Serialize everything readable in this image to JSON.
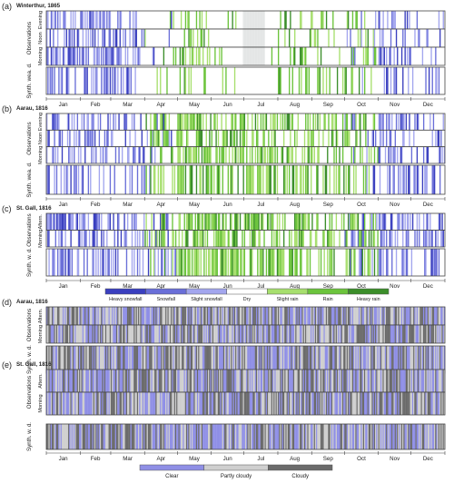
{
  "chart_data": {
    "type": "heatmap",
    "months": [
      "Jan",
      "Feb",
      "Mar",
      "Apr",
      "May",
      "Jun",
      "Jul",
      "Aug",
      "Sep",
      "Oct",
      "Nov",
      "Dec"
    ],
    "panels": [
      {
        "letter": "(a)",
        "title": "Winterthur, 1865",
        "scheme": "precip",
        "obs_label": "Observations",
        "syn_label": "Synth. wea. d.",
        "obs_rows": [
          "Evening",
          "Noon",
          "Morning"
        ],
        "seed": 11,
        "wet_by_month": [
          0.45,
          0.6,
          0.35,
          0.12,
          0.42,
          0.08,
          0.05,
          0.3,
          0.2,
          0.32,
          0.3,
          0.15
        ],
        "missing_days": [
          180,
          200
        ]
      },
      {
        "letter": "(b)",
        "title": "Aarau, 1816",
        "scheme": "precip",
        "obs_label": "Observations",
        "syn_label": "Synth. wea. d.",
        "obs_rows": [
          "Evening",
          "Noon",
          "Morning"
        ],
        "seed": 23,
        "wet_by_month": [
          0.4,
          0.35,
          0.3,
          0.45,
          0.55,
          0.5,
          0.55,
          0.45,
          0.35,
          0.4,
          0.4,
          0.3
        ]
      },
      {
        "letter": "(c)",
        "title": "St. Gall, 1816",
        "scheme": "precip",
        "obs_label": "Observations",
        "syn_label": "Synth. w. d.",
        "obs_rows": [
          "Aftern.",
          "Morning"
        ],
        "seed": 37,
        "wet_by_month": [
          0.5,
          0.45,
          0.4,
          0.5,
          0.6,
          0.6,
          0.65,
          0.55,
          0.45,
          0.5,
          0.45,
          0.4
        ]
      },
      {
        "letter": "(d)",
        "title": "Aarau, 1816",
        "scheme": "cloud",
        "obs_label": "Observations",
        "syn_label": "Synth. w. d.",
        "obs_rows": [
          "Aftern.",
          "Morning"
        ],
        "seed": 51
      },
      {
        "letter": "(e)",
        "title": "St. Gall, 1816",
        "scheme": "cloud",
        "obs_label": "Observations",
        "syn_label": "Synth. w. d.",
        "obs_rows": [
          "Aftern.",
          "Morning"
        ],
        "seed": 67
      }
    ],
    "legend_precip": [
      {
        "label": "Heavy snowfall",
        "color": "#3a3fbf"
      },
      {
        "label": "Snowfall",
        "color": "#6a6fd8"
      },
      {
        "label": "Slight snowfall",
        "color": "#a3a6ee"
      },
      {
        "label": "Dry",
        "color": "#ffffff"
      },
      {
        "label": "Slight rain",
        "color": "#a7df6e"
      },
      {
        "label": "Rain",
        "color": "#6cc43c"
      },
      {
        "label": "Heavy rain",
        "color": "#3b8e2a"
      }
    ],
    "legend_cloud": [
      {
        "label": "Clear",
        "color": "#8f8fe6"
      },
      {
        "label": "Partly cloudy",
        "color": "#cfcfcf"
      },
      {
        "label": "Cloudy",
        "color": "#6b6b6b"
      }
    ],
    "missing_color": "#e4e6e6"
  }
}
